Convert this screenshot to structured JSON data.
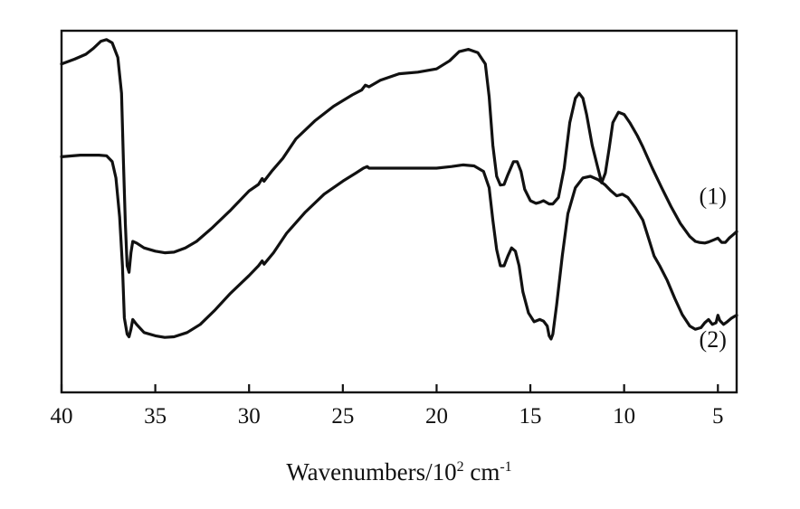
{
  "chart_data": {
    "type": "line",
    "title": "",
    "xlabel": "Wavenumbers/10² cm⁻¹",
    "xlabel_parts": {
      "base": "Wavenumbers/10",
      "exp1": "2",
      "unit": " cm",
      "exp2": "-1"
    },
    "ylabel": "",
    "xlim": [
      40,
      4
    ],
    "x_reversed": true,
    "xticks": [
      40,
      35,
      30,
      25,
      20,
      15,
      10,
      5
    ],
    "ylim": [
      0,
      1
    ],
    "y_axis_visible": false,
    "grid": false,
    "legend": "none",
    "series": [
      {
        "name": "(1)",
        "label_at": [
          6,
          0.49
        ],
        "points": [
          [
            40,
            0.92
          ],
          [
            39.3,
            0.935
          ],
          [
            38.7,
            0.95
          ],
          [
            38.3,
            0.968
          ],
          [
            37.9,
            0.99
          ],
          [
            37.6,
            0.995
          ],
          [
            37.3,
            0.985
          ],
          [
            37.0,
            0.94
          ],
          [
            36.8,
            0.83
          ],
          [
            36.7,
            0.62
          ],
          [
            36.6,
            0.43
          ],
          [
            36.5,
            0.3
          ],
          [
            36.4,
            0.28
          ],
          [
            36.3,
            0.34
          ],
          [
            36.2,
            0.375
          ],
          [
            36.0,
            0.37
          ],
          [
            35.6,
            0.355
          ],
          [
            35.0,
            0.345
          ],
          [
            34.5,
            0.34
          ],
          [
            34.0,
            0.342
          ],
          [
            33.4,
            0.355
          ],
          [
            32.8,
            0.375
          ],
          [
            32.0,
            0.415
          ],
          [
            31.0,
            0.47
          ],
          [
            30.0,
            0.53
          ],
          [
            29.5,
            0.55
          ],
          [
            29.3,
            0.568
          ],
          [
            29.2,
            0.56
          ],
          [
            28.8,
            0.59
          ],
          [
            28.2,
            0.63
          ],
          [
            27.5,
            0.69
          ],
          [
            26.5,
            0.745
          ],
          [
            25.5,
            0.79
          ],
          [
            24.5,
            0.825
          ],
          [
            24.0,
            0.84
          ],
          [
            23.8,
            0.855
          ],
          [
            23.6,
            0.85
          ],
          [
            23.0,
            0.87
          ],
          [
            22.0,
            0.89
          ],
          [
            21.0,
            0.895
          ],
          [
            20.0,
            0.905
          ],
          [
            19.3,
            0.93
          ],
          [
            18.8,
            0.958
          ],
          [
            18.3,
            0.965
          ],
          [
            17.8,
            0.955
          ],
          [
            17.4,
            0.92
          ],
          [
            17.2,
            0.82
          ],
          [
            17.0,
            0.67
          ],
          [
            16.8,
            0.575
          ],
          [
            16.6,
            0.548
          ],
          [
            16.4,
            0.55
          ],
          [
            16.2,
            0.58
          ],
          [
            15.9,
            0.62
          ],
          [
            15.7,
            0.62
          ],
          [
            15.5,
            0.59
          ],
          [
            15.3,
            0.535
          ],
          [
            15.0,
            0.5
          ],
          [
            14.7,
            0.492
          ],
          [
            14.5,
            0.495
          ],
          [
            14.3,
            0.5
          ],
          [
            14.0,
            0.49
          ],
          [
            13.8,
            0.49
          ],
          [
            13.5,
            0.51
          ],
          [
            13.2,
            0.6
          ],
          [
            12.9,
            0.74
          ],
          [
            12.6,
            0.815
          ],
          [
            12.4,
            0.83
          ],
          [
            12.2,
            0.815
          ],
          [
            12.0,
            0.765
          ],
          [
            11.7,
            0.67
          ],
          [
            11.4,
            0.6
          ],
          [
            11.2,
            0.555
          ],
          [
            11.0,
            0.585
          ],
          [
            10.8,
            0.66
          ],
          [
            10.6,
            0.74
          ],
          [
            10.3,
            0.772
          ],
          [
            10.0,
            0.765
          ],
          [
            9.7,
            0.74
          ],
          [
            9.3,
            0.7
          ],
          [
            9.0,
            0.665
          ],
          [
            8.5,
            0.6
          ],
          [
            8.0,
            0.54
          ],
          [
            7.5,
            0.482
          ],
          [
            7.0,
            0.43
          ],
          [
            6.5,
            0.39
          ],
          [
            6.2,
            0.375
          ],
          [
            6.0,
            0.372
          ],
          [
            5.7,
            0.37
          ],
          [
            5.5,
            0.373
          ],
          [
            5.2,
            0.38
          ],
          [
            5.0,
            0.385
          ],
          [
            4.8,
            0.372
          ],
          [
            4.6,
            0.372
          ],
          [
            4.4,
            0.385
          ],
          [
            4.2,
            0.395
          ],
          [
            4.0,
            0.405
          ]
        ]
      },
      {
        "name": "(2)",
        "label_at": [
          6,
          0.05
        ],
        "points": [
          [
            40,
            0.635
          ],
          [
            39.0,
            0.64
          ],
          [
            38.0,
            0.64
          ],
          [
            37.6,
            0.638
          ],
          [
            37.3,
            0.62
          ],
          [
            37.1,
            0.57
          ],
          [
            36.9,
            0.45
          ],
          [
            36.75,
            0.3
          ],
          [
            36.65,
            0.14
          ],
          [
            36.5,
            0.09
          ],
          [
            36.4,
            0.082
          ],
          [
            36.3,
            0.105
          ],
          [
            36.2,
            0.135
          ],
          [
            36.0,
            0.12
          ],
          [
            35.6,
            0.095
          ],
          [
            35.0,
            0.085
          ],
          [
            34.5,
            0.08
          ],
          [
            34.0,
            0.082
          ],
          [
            33.3,
            0.095
          ],
          [
            32.6,
            0.12
          ],
          [
            31.8,
            0.165
          ],
          [
            31.0,
            0.215
          ],
          [
            30.0,
            0.27
          ],
          [
            29.5,
            0.3
          ],
          [
            29.3,
            0.315
          ],
          [
            29.2,
            0.305
          ],
          [
            28.7,
            0.34
          ],
          [
            28.0,
            0.4
          ],
          [
            27.0,
            0.465
          ],
          [
            26.0,
            0.52
          ],
          [
            25.0,
            0.56
          ],
          [
            24.3,
            0.585
          ],
          [
            23.9,
            0.6
          ],
          [
            23.7,
            0.605
          ],
          [
            23.6,
            0.6
          ],
          [
            23.0,
            0.6
          ],
          [
            22.0,
            0.6
          ],
          [
            21.0,
            0.6
          ],
          [
            20.0,
            0.6
          ],
          [
            19.2,
            0.605
          ],
          [
            18.6,
            0.61
          ],
          [
            18.0,
            0.607
          ],
          [
            17.5,
            0.59
          ],
          [
            17.2,
            0.54
          ],
          [
            17.0,
            0.44
          ],
          [
            16.8,
            0.35
          ],
          [
            16.6,
            0.3
          ],
          [
            16.4,
            0.3
          ],
          [
            16.2,
            0.33
          ],
          [
            16.0,
            0.355
          ],
          [
            15.8,
            0.345
          ],
          [
            15.6,
            0.3
          ],
          [
            15.4,
            0.22
          ],
          [
            15.1,
            0.155
          ],
          [
            14.8,
            0.128
          ],
          [
            14.5,
            0.135
          ],
          [
            14.3,
            0.13
          ],
          [
            14.1,
            0.115
          ],
          [
            14.0,
            0.085
          ],
          [
            13.9,
            0.075
          ],
          [
            13.8,
            0.09
          ],
          [
            13.6,
            0.18
          ],
          [
            13.3,
            0.33
          ],
          [
            13.0,
            0.46
          ],
          [
            12.6,
            0.54
          ],
          [
            12.2,
            0.57
          ],
          [
            11.8,
            0.575
          ],
          [
            11.4,
            0.565
          ],
          [
            11.0,
            0.548
          ],
          [
            10.7,
            0.53
          ],
          [
            10.4,
            0.515
          ],
          [
            10.1,
            0.52
          ],
          [
            9.8,
            0.51
          ],
          [
            9.4,
            0.478
          ],
          [
            9.0,
            0.44
          ],
          [
            8.7,
            0.385
          ],
          [
            8.4,
            0.33
          ],
          [
            8.1,
            0.3
          ],
          [
            7.7,
            0.255
          ],
          [
            7.3,
            0.2
          ],
          [
            6.9,
            0.15
          ],
          [
            6.5,
            0.115
          ],
          [
            6.2,
            0.105
          ],
          [
            5.9,
            0.11
          ],
          [
            5.7,
            0.125
          ],
          [
            5.5,
            0.135
          ],
          [
            5.3,
            0.12
          ],
          [
            5.1,
            0.125
          ],
          [
            5.0,
            0.148
          ],
          [
            4.9,
            0.132
          ],
          [
            4.7,
            0.12
          ],
          [
            4.5,
            0.128
          ],
          [
            4.3,
            0.138
          ],
          [
            4.1,
            0.145
          ],
          [
            4.0,
            0.148
          ]
        ]
      }
    ]
  }
}
